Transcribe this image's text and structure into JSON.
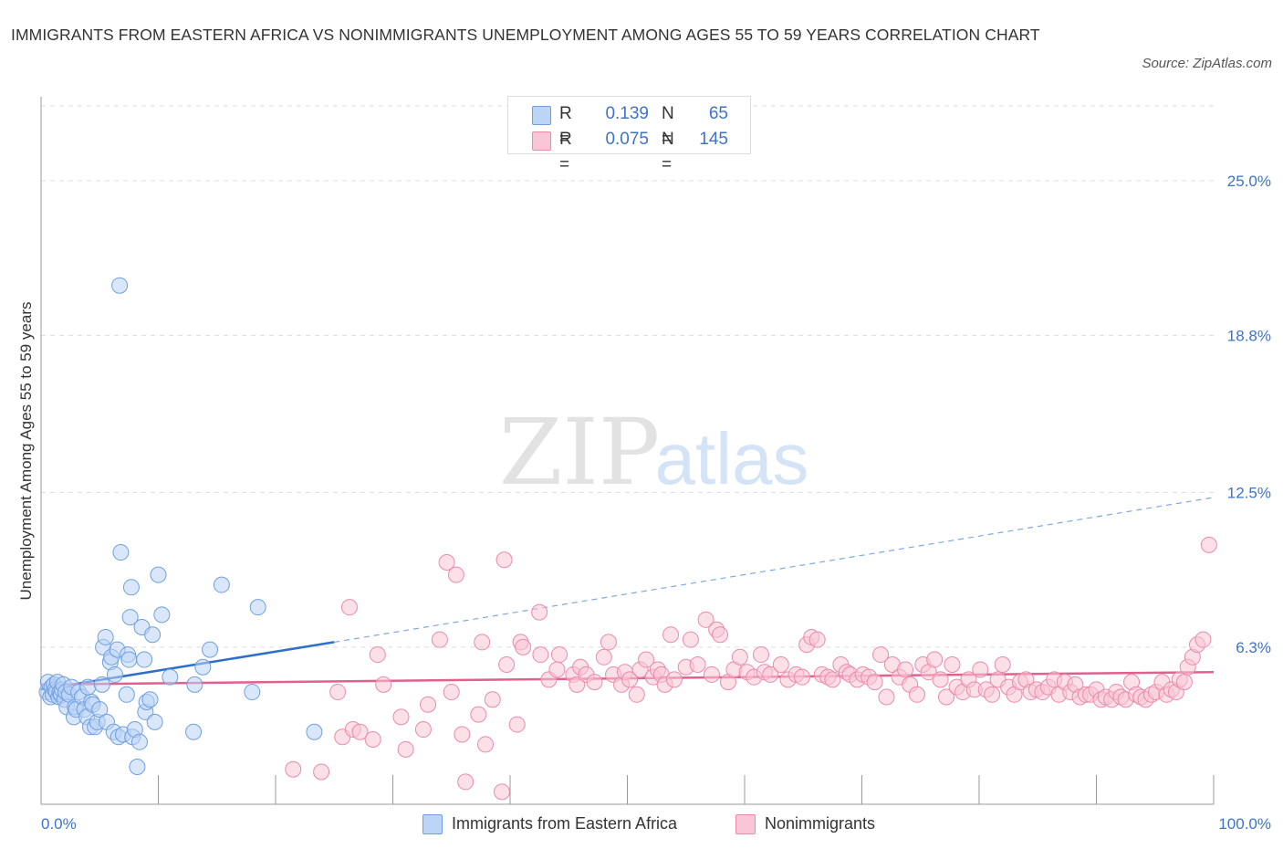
{
  "title": "IMMIGRANTS FROM EASTERN AFRICA VS NONIMMIGRANTS UNEMPLOYMENT AMONG AGES 55 TO 59 YEARS CORRELATION CHART",
  "source": "Source: ZipAtlas.com",
  "watermark": {
    "zip": "ZIP",
    "atlas": "atlas"
  },
  "legend": {
    "series1": {
      "r_label": "R =",
      "r_value": "0.139",
      "n_label": "N =",
      "n_value": "65"
    },
    "series2": {
      "r_label": "R =",
      "r_value": "0.075",
      "n_label": "N =",
      "n_value": "145"
    }
  },
  "colors": {
    "series1_fill": "#bcd4f5",
    "series1_stroke": "#6f9fe0",
    "series1_line": "#2f6fcc",
    "series2_fill": "#f8c6d6",
    "series2_stroke": "#ec8aaa",
    "series2_line": "#e0608e",
    "axis_label": "#3d74c8",
    "grid": "#dddddd"
  },
  "chart_data": {
    "type": "scatter",
    "title": "IMMIGRANTS FROM EASTERN AFRICA VS NONIMMIGRANTS UNEMPLOYMENT AMONG AGES 55 TO 59 YEARS CORRELATION CHART",
    "xlabel": "",
    "ylabel": "Unemployment Among Ages 55 to 59 years",
    "xlim": [
      0,
      100
    ],
    "ylim": [
      0,
      28
    ],
    "x_tick_labels": [
      "0.0%",
      "100.0%"
    ],
    "y_ticks": [
      6.3,
      12.5,
      18.8,
      25.0
    ],
    "y_tick_labels": [
      "6.3%",
      "12.5%",
      "18.8%",
      "25.0%"
    ],
    "grid": true,
    "legend_position": "top-center",
    "series": [
      {
        "name": "Immigrants from Eastern Africa",
        "trend": {
          "x": [
            0,
            25
          ],
          "y": [
            4.6,
            6.5
          ],
          "extended": {
            "x": [
              25,
              100
            ],
            "y": [
              6.5,
              12.3
            ]
          }
        },
        "points": [
          [
            0.5,
            4.5
          ],
          [
            0.6,
            4.9
          ],
          [
            0.8,
            4.3
          ],
          [
            0.9,
            4.7
          ],
          [
            1.0,
            4.4
          ],
          [
            1.1,
            4.8
          ],
          [
            1.2,
            4.6
          ],
          [
            1.3,
            4.5
          ],
          [
            1.4,
            4.9
          ],
          [
            1.5,
            4.3
          ],
          [
            1.6,
            4.5
          ],
          [
            1.7,
            4.4
          ],
          [
            1.8,
            4.6
          ],
          [
            1.9,
            4.8
          ],
          [
            2.0,
            4.2
          ],
          [
            2.1,
            4.5
          ],
          [
            2.2,
            3.9
          ],
          [
            2.4,
            4.4
          ],
          [
            2.6,
            4.7
          ],
          [
            2.8,
            3.5
          ],
          [
            2.9,
            3.9
          ],
          [
            3.0,
            3.8
          ],
          [
            3.2,
            4.5
          ],
          [
            3.5,
            4.3
          ],
          [
            3.7,
            3.8
          ],
          [
            3.9,
            3.5
          ],
          [
            4.0,
            4.7
          ],
          [
            4.2,
            3.1
          ],
          [
            4.3,
            4.1
          ],
          [
            4.4,
            4.0
          ],
          [
            4.6,
            3.1
          ],
          [
            4.8,
            3.3
          ],
          [
            5.0,
            3.8
          ],
          [
            5.2,
            4.8
          ],
          [
            5.3,
            6.3
          ],
          [
            5.5,
            6.7
          ],
          [
            5.6,
            3.3
          ],
          [
            5.9,
            5.7
          ],
          [
            6.0,
            5.9
          ],
          [
            6.2,
            2.9
          ],
          [
            6.3,
            5.2
          ],
          [
            6.5,
            6.2
          ],
          [
            6.6,
            2.7
          ],
          [
            6.7,
            20.8
          ],
          [
            6.8,
            10.1
          ],
          [
            7.0,
            2.8
          ],
          [
            7.3,
            4.4
          ],
          [
            7.4,
            6.0
          ],
          [
            7.5,
            5.8
          ],
          [
            7.6,
            7.5
          ],
          [
            7.7,
            8.7
          ],
          [
            7.8,
            2.7
          ],
          [
            8.0,
            3.0
          ],
          [
            8.2,
            1.5
          ],
          [
            8.4,
            2.5
          ],
          [
            8.6,
            7.1
          ],
          [
            8.8,
            5.8
          ],
          [
            8.9,
            3.7
          ],
          [
            9.0,
            4.1
          ],
          [
            9.3,
            4.2
          ],
          [
            9.5,
            6.8
          ],
          [
            9.7,
            3.3
          ],
          [
            10.0,
            9.2
          ],
          [
            10.3,
            7.6
          ],
          [
            11.0,
            5.1
          ],
          [
            13.0,
            2.9
          ],
          [
            13.1,
            4.8
          ],
          [
            13.8,
            5.5
          ],
          [
            14.4,
            6.2
          ],
          [
            15.4,
            8.8
          ],
          [
            18.0,
            4.5
          ],
          [
            18.5,
            7.9
          ],
          [
            23.3,
            2.9
          ]
        ]
      },
      {
        "name": "Nonimmigrants",
        "trend": {
          "x": [
            0,
            100
          ],
          "y": [
            4.8,
            5.3
          ]
        },
        "points": [
          [
            21.5,
            1.4
          ],
          [
            23.9,
            1.3
          ],
          [
            25.3,
            4.5
          ],
          [
            25.7,
            2.7
          ],
          [
            26.3,
            7.9
          ],
          [
            26.6,
            3.0
          ],
          [
            27.2,
            2.9
          ],
          [
            28.3,
            2.6
          ],
          [
            28.7,
            6.0
          ],
          [
            29.2,
            4.8
          ],
          [
            30.7,
            3.5
          ],
          [
            31.1,
            2.2
          ],
          [
            32.6,
            3.0
          ],
          [
            33.0,
            4.0
          ],
          [
            34.0,
            6.6
          ],
          [
            34.6,
            9.7
          ],
          [
            35.0,
            4.5
          ],
          [
            35.4,
            9.2
          ],
          [
            35.9,
            2.8
          ],
          [
            36.2,
            0.9
          ],
          [
            37.3,
            3.6
          ],
          [
            37.6,
            6.5
          ],
          [
            37.9,
            2.4
          ],
          [
            38.5,
            4.2
          ],
          [
            39.3,
            0.5
          ],
          [
            39.5,
            9.8
          ],
          [
            39.7,
            5.6
          ],
          [
            40.6,
            3.2
          ],
          [
            40.9,
            6.5
          ],
          [
            41.1,
            6.3
          ],
          [
            42.5,
            7.7
          ],
          [
            42.6,
            6.0
          ],
          [
            43.3,
            5.0
          ],
          [
            44.0,
            5.4
          ],
          [
            44.2,
            6.0
          ],
          [
            45.4,
            5.2
          ],
          [
            45.7,
            4.8
          ],
          [
            46.0,
            5.5
          ],
          [
            46.5,
            5.2
          ],
          [
            47.2,
            4.9
          ],
          [
            48.0,
            5.9
          ],
          [
            48.4,
            6.5
          ],
          [
            48.8,
            5.2
          ],
          [
            49.5,
            4.8
          ],
          [
            49.8,
            5.3
          ],
          [
            50.2,
            5.0
          ],
          [
            50.8,
            4.4
          ],
          [
            51.1,
            5.4
          ],
          [
            51.6,
            5.8
          ],
          [
            52.2,
            5.1
          ],
          [
            52.6,
            5.4
          ],
          [
            52.9,
            5.2
          ],
          [
            53.2,
            4.8
          ],
          [
            53.7,
            6.8
          ],
          [
            54.0,
            5.0
          ],
          [
            55.0,
            5.5
          ],
          [
            55.4,
            6.6
          ],
          [
            56.0,
            5.6
          ],
          [
            56.7,
            7.4
          ],
          [
            57.2,
            5.2
          ],
          [
            57.6,
            7.0
          ],
          [
            57.9,
            6.8
          ],
          [
            58.6,
            4.9
          ],
          [
            59.1,
            5.4
          ],
          [
            59.6,
            5.9
          ],
          [
            60.2,
            5.3
          ],
          [
            60.8,
            5.1
          ],
          [
            61.4,
            6.0
          ],
          [
            61.7,
            5.3
          ],
          [
            62.2,
            5.2
          ],
          [
            63.1,
            5.6
          ],
          [
            63.7,
            5.0
          ],
          [
            64.4,
            5.2
          ],
          [
            64.9,
            5.1
          ],
          [
            65.3,
            6.4
          ],
          [
            65.7,
            6.7
          ],
          [
            66.2,
            6.6
          ],
          [
            66.6,
            5.2
          ],
          [
            67.1,
            5.1
          ],
          [
            67.5,
            5.0
          ],
          [
            68.2,
            5.6
          ],
          [
            68.7,
            5.3
          ],
          [
            69.0,
            5.2
          ],
          [
            69.6,
            5.0
          ],
          [
            70.1,
            5.2
          ],
          [
            70.6,
            5.1
          ],
          [
            71.1,
            4.9
          ],
          [
            71.6,
            6.0
          ],
          [
            72.1,
            4.3
          ],
          [
            72.6,
            5.6
          ],
          [
            73.2,
            5.1
          ],
          [
            73.7,
            5.4
          ],
          [
            74.1,
            4.8
          ],
          [
            74.7,
            4.4
          ],
          [
            75.2,
            5.6
          ],
          [
            75.7,
            5.3
          ],
          [
            76.2,
            5.8
          ],
          [
            76.7,
            5.0
          ],
          [
            77.2,
            4.3
          ],
          [
            77.7,
            5.6
          ],
          [
            78.1,
            4.7
          ],
          [
            78.6,
            4.5
          ],
          [
            79.1,
            5.0
          ],
          [
            79.6,
            4.6
          ],
          [
            80.1,
            5.4
          ],
          [
            80.6,
            4.6
          ],
          [
            81.1,
            4.4
          ],
          [
            81.6,
            5.0
          ],
          [
            82.0,
            5.6
          ],
          [
            82.5,
            4.7
          ],
          [
            83.0,
            4.4
          ],
          [
            83.5,
            4.9
          ],
          [
            84.0,
            5.0
          ],
          [
            84.4,
            4.5
          ],
          [
            84.9,
            4.6
          ],
          [
            85.4,
            4.5
          ],
          [
            85.9,
            4.7
          ],
          [
            86.4,
            5.0
          ],
          [
            86.8,
            4.4
          ],
          [
            87.3,
            4.9
          ],
          [
            87.8,
            4.5
          ],
          [
            88.2,
            4.8
          ],
          [
            88.6,
            4.3
          ],
          [
            89.1,
            4.4
          ],
          [
            89.5,
            4.4
          ],
          [
            90.0,
            4.6
          ],
          [
            90.4,
            4.2
          ],
          [
            90.8,
            4.3
          ],
          [
            91.3,
            4.2
          ],
          [
            91.7,
            4.5
          ],
          [
            92.1,
            4.3
          ],
          [
            92.5,
            4.2
          ],
          [
            93.0,
            4.9
          ],
          [
            93.4,
            4.4
          ],
          [
            93.8,
            4.3
          ],
          [
            94.2,
            4.2
          ],
          [
            94.7,
            4.4
          ],
          [
            95.1,
            4.5
          ],
          [
            95.6,
            4.9
          ],
          [
            96.0,
            4.4
          ],
          [
            96.4,
            4.6
          ],
          [
            96.8,
            4.5
          ],
          [
            97.1,
            5.0
          ],
          [
            97.5,
            4.9
          ],
          [
            97.8,
            5.5
          ],
          [
            98.2,
            5.9
          ],
          [
            98.6,
            6.4
          ],
          [
            99.1,
            6.6
          ],
          [
            99.6,
            10.4
          ]
        ]
      }
    ]
  },
  "bottom_legend": {
    "series1": "Immigrants from Eastern Africa",
    "series2": "Nonimmigrants"
  }
}
